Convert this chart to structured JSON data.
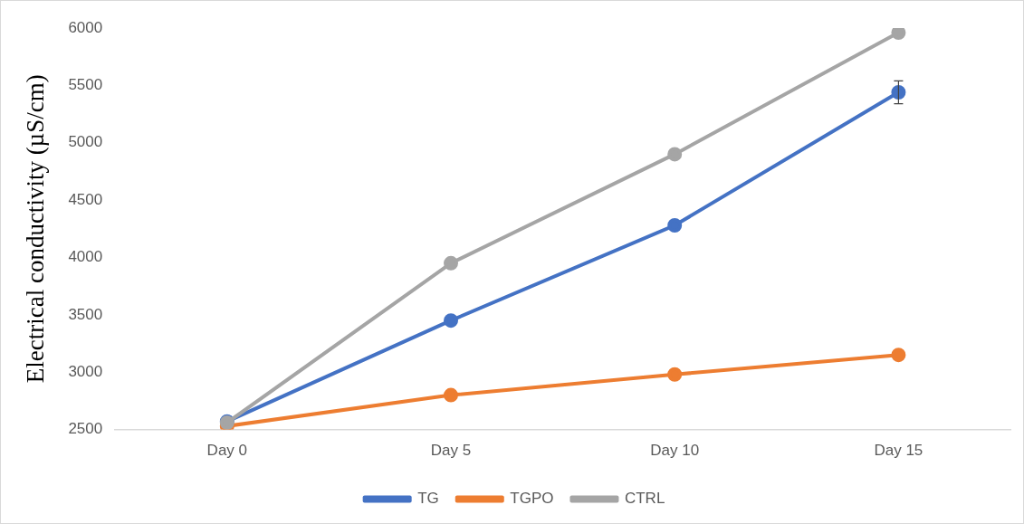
{
  "chart_data": {
    "type": "line",
    "ylabel": "Electrical conductivity (µS/cm)",
    "categories": [
      "Day 0",
      "Day 5",
      "Day 10",
      "Day 15"
    ],
    "series": [
      {
        "name": "TG",
        "color": "#4472c4",
        "values": [
          2570,
          3450,
          4280,
          5440
        ],
        "errors": [
          null,
          null,
          null,
          100
        ]
      },
      {
        "name": "TGPO",
        "color": "#ed7d31",
        "values": [
          2530,
          2800,
          2980,
          3150
        ]
      },
      {
        "name": "CTRL",
        "color": "#a5a5a5",
        "values": [
          2560,
          3950,
          4900,
          5960
        ]
      }
    ],
    "ylim": [
      2500,
      6000
    ],
    "yticks": [
      2500,
      3000,
      3500,
      4000,
      4500,
      5000,
      5500,
      6000
    ],
    "grid": false,
    "legend": "bottom",
    "marker": "circle",
    "line_style": "solid"
  }
}
